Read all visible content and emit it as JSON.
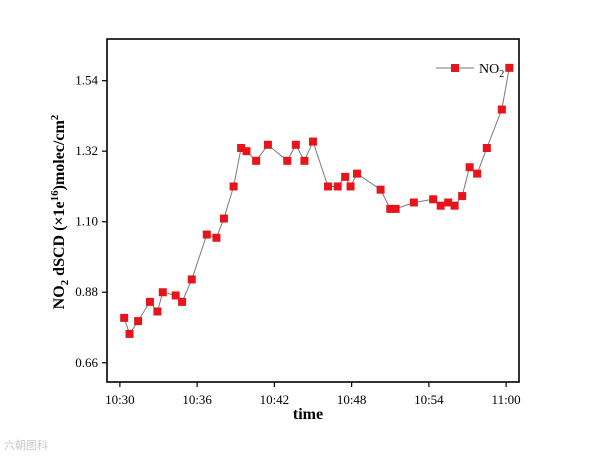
{
  "chart_data": {
    "type": "line",
    "xlabel": "time",
    "ylabel": "NO2 dSCD (×1e16)molec/cm2",
    "x_ticks": [
      "10:30",
      "10:36",
      "10:42",
      "10:48",
      "10:54",
      "11:00"
    ],
    "y_ticks": [
      0.66,
      0.88,
      1.1,
      1.32,
      1.54
    ],
    "xlim": [
      "10:29",
      "11:01"
    ],
    "ylim": [
      0.6,
      1.67
    ],
    "grid": false,
    "legend_position": "top-right",
    "marker": "square",
    "series": [
      {
        "name": "NO2",
        "color": "#e8141b",
        "line_color": "#7a7a7a",
        "points": [
          {
            "x": "10:30:20",
            "y": 0.8
          },
          {
            "x": "10:30:45",
            "y": 0.75
          },
          {
            "x": "10:31:25",
            "y": 0.79
          },
          {
            "x": "10:32:20",
            "y": 0.85
          },
          {
            "x": "10:32:55",
            "y": 0.82
          },
          {
            "x": "10:33:20",
            "y": 0.88
          },
          {
            "x": "10:34:20",
            "y": 0.87
          },
          {
            "x": "10:34:50",
            "y": 0.85
          },
          {
            "x": "10:35:35",
            "y": 0.92
          },
          {
            "x": "10:36:45",
            "y": 1.06
          },
          {
            "x": "10:37:30",
            "y": 1.05
          },
          {
            "x": "10:38:05",
            "y": 1.11
          },
          {
            "x": "10:38:50",
            "y": 1.21
          },
          {
            "x": "10:39:25",
            "y": 1.33
          },
          {
            "x": "10:39:50",
            "y": 1.32
          },
          {
            "x": "10:40:35",
            "y": 1.29
          },
          {
            "x": "10:41:30",
            "y": 1.34
          },
          {
            "x": "10:43:00",
            "y": 1.29
          },
          {
            "x": "10:43:40",
            "y": 1.34
          },
          {
            "x": "10:44:20",
            "y": 1.29
          },
          {
            "x": "10:45:00",
            "y": 1.35
          },
          {
            "x": "10:46:10",
            "y": 1.21
          },
          {
            "x": "10:46:55",
            "y": 1.21
          },
          {
            "x": "10:47:30",
            "y": 1.24
          },
          {
            "x": "10:47:55",
            "y": 1.21
          },
          {
            "x": "10:48:25",
            "y": 1.25
          },
          {
            "x": "10:50:15",
            "y": 1.2
          },
          {
            "x": "10:51:00",
            "y": 1.14
          },
          {
            "x": "10:51:25",
            "y": 1.14
          },
          {
            "x": "10:52:50",
            "y": 1.16
          },
          {
            "x": "10:54:20",
            "y": 1.17
          },
          {
            "x": "10:54:55",
            "y": 1.15
          },
          {
            "x": "10:55:30",
            "y": 1.16
          },
          {
            "x": "10:56:00",
            "y": 1.15
          },
          {
            "x": "10:56:35",
            "y": 1.18
          },
          {
            "x": "10:57:10",
            "y": 1.27
          },
          {
            "x": "10:57:45",
            "y": 1.25
          },
          {
            "x": "10:58:30",
            "y": 1.33
          },
          {
            "x": "10:59:40",
            "y": 1.45
          },
          {
            "x": "11:00:15",
            "y": 1.58
          }
        ]
      }
    ]
  },
  "watermark": {
    "text": "六朝图科"
  }
}
